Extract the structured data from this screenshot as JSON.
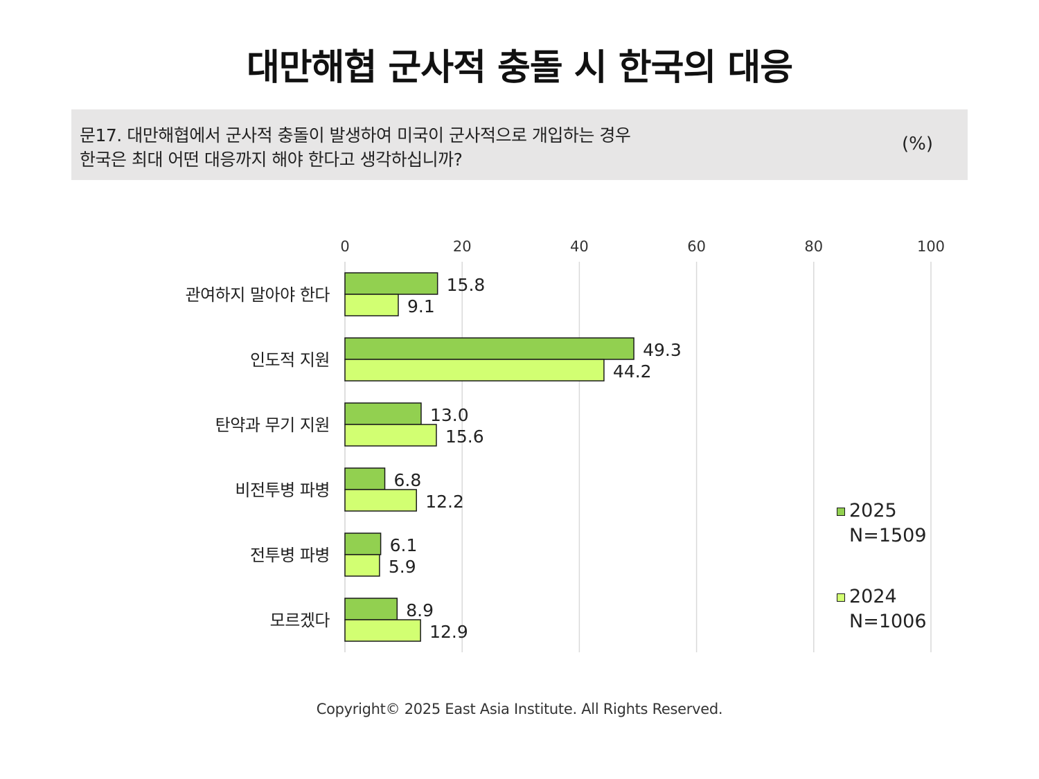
{
  "title": "대만해협 군사적 충돌 시 한국의 대응",
  "question": {
    "line1": "문17. 대만해협에서 군사적 충돌이 발생하여 미국이 군사적으로 개입하는 경우",
    "line2": "한국은 최대 어떤 대응까지 해야 한다고 생각하십니까?",
    "unit": "(%)"
  },
  "chart_data": {
    "type": "bar",
    "orientation": "horizontal",
    "categories": [
      "관여하지 말아야 한다",
      "인도적 지원",
      "탄약과 무기 지원",
      "비전투병 파병",
      "전투병 파병",
      "모르겠다"
    ],
    "series": [
      {
        "name": "2025",
        "sample": "N=1509",
        "color": "#92d050",
        "values": [
          15.8,
          49.3,
          13.0,
          6.8,
          6.1,
          8.9
        ]
      },
      {
        "name": "2024",
        "sample": "N=1006",
        "color": "#d2ff72",
        "values": [
          9.1,
          44.2,
          15.6,
          12.2,
          5.9,
          12.9
        ]
      }
    ],
    "xlim": [
      0,
      100
    ],
    "xticks": [
      0,
      20,
      40,
      60,
      80,
      100
    ],
    "grid": true,
    "legend_position": "bottom-right"
  },
  "copyright": "Copyright© 2025 East Asia Institute. All Rights Reserved."
}
